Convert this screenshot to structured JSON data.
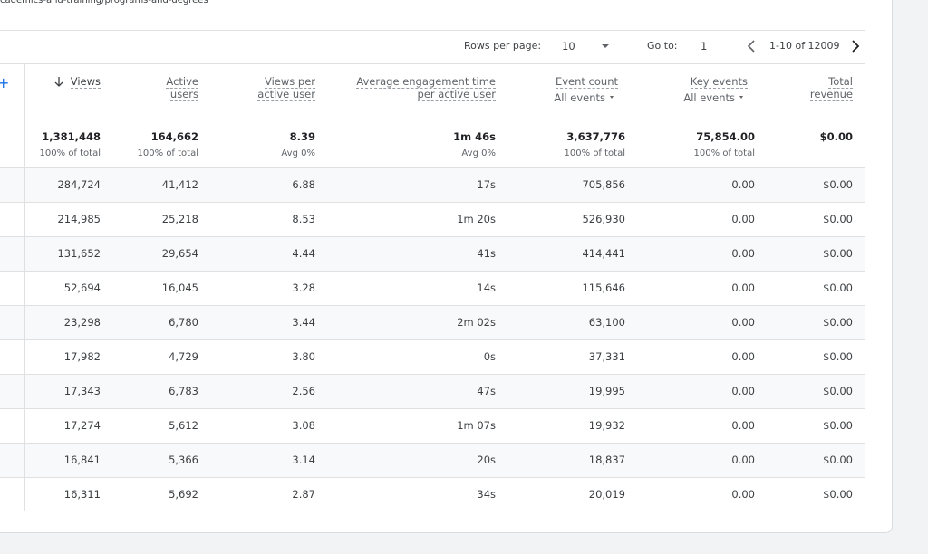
{
  "breadcrumb": "cademics-and-training/programs-and-degrees",
  "pagination": {
    "rows_per_page_label": "Rows per page:",
    "rows_per_page": "10",
    "go_to_label": "Go to:",
    "go_to": "1",
    "range": "1-10 of 12009"
  },
  "table": {
    "columns": [
      {
        "lines": [
          "Views"
        ]
      },
      {
        "lines": [
          "Active",
          "users"
        ]
      },
      {
        "lines": [
          "Views per",
          "active user"
        ]
      },
      {
        "lines": [
          "Average engagement time",
          "per active user"
        ]
      },
      {
        "lines": [
          "Event count"
        ],
        "filter": "All events"
      },
      {
        "lines": [
          "Key events"
        ],
        "filter": "All events"
      },
      {
        "lines": [
          "Total",
          "revenue"
        ]
      }
    ],
    "totals": [
      {
        "value": "1,381,448",
        "sub": "100% of total"
      },
      {
        "value": "164,662",
        "sub": "100% of total"
      },
      {
        "value": "8.39",
        "sub": "Avg 0%"
      },
      {
        "value": "1m 46s",
        "sub": "Avg 0%"
      },
      {
        "value": "3,637,776",
        "sub": "100% of total"
      },
      {
        "value": "75,854.00",
        "sub": "100% of total"
      },
      {
        "value": "$0.00"
      }
    ],
    "rows": [
      [
        "284,724",
        "41,412",
        "6.88",
        "17s",
        "705,856",
        "0.00",
        "$0.00"
      ],
      [
        "214,985",
        "25,218",
        "8.53",
        "1m 20s",
        "526,930",
        "0.00",
        "$0.00"
      ],
      [
        "131,652",
        "29,654",
        "4.44",
        "41s",
        "414,441",
        "0.00",
        "$0.00"
      ],
      [
        "52,694",
        "16,045",
        "3.28",
        "14s",
        "115,646",
        "0.00",
        "$0.00"
      ],
      [
        "23,298",
        "6,780",
        "3.44",
        "2m 02s",
        "63,100",
        "0.00",
        "$0.00"
      ],
      [
        "17,982",
        "4,729",
        "3.80",
        "0s",
        "37,331",
        "0.00",
        "$0.00"
      ],
      [
        "17,343",
        "6,783",
        "2.56",
        "47s",
        "19,995",
        "0.00",
        "$0.00"
      ],
      [
        "17,274",
        "5,612",
        "3.08",
        "1m 07s",
        "19,932",
        "0.00",
        "$0.00"
      ],
      [
        "16,841",
        "5,366",
        "3.14",
        "20s",
        "18,837",
        "0.00",
        "$0.00"
      ],
      [
        "16,311",
        "5,692",
        "2.87",
        "34s",
        "20,019",
        "0.00",
        "$0.00"
      ]
    ]
  }
}
